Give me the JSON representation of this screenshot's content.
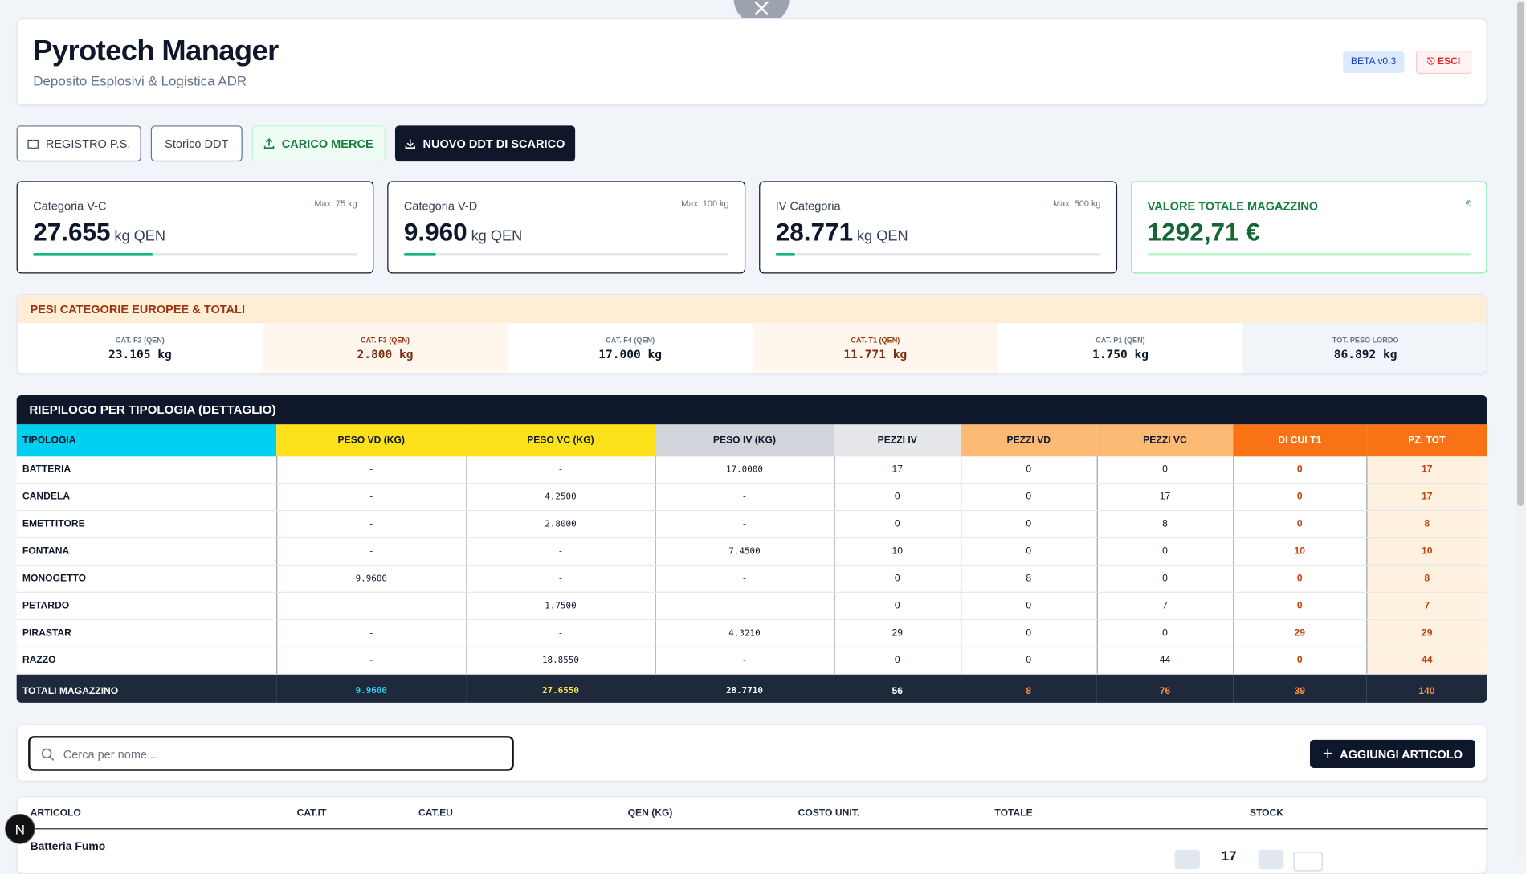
{
  "header": {
    "title": "Pyrotech Manager",
    "subtitle": "Deposito Esplosivi & Logistica ADR",
    "badge": "BETA v0.3",
    "logout": "ESCI"
  },
  "actions": [
    "REGISTRO P.S.",
    "Storico DDT",
    "CARICO MERCE",
    "NUOVO DDT DI SCARICO"
  ],
  "stats": [
    {
      "label": "Categoria V-C",
      "max": "Max: 75 kg",
      "value": "27.655",
      "unit": "kg QEN"
    },
    {
      "label": "Categoria V-D",
      "max": "Max: 100 kg",
      "value": "9.960",
      "unit": "kg QEN"
    },
    {
      "label": "IV Categoria",
      "max": "Max: 500 kg",
      "value": "28.771",
      "unit": "kg QEN"
    },
    {
      "label": "VALORE TOTALE MAGAZZINO",
      "max": "€",
      "value": "1292,71 €"
    }
  ],
  "european": {
    "title": "PESI CATEGORIE EUROPEE & TOTALI",
    "cells": [
      {
        "label": "CAT. F2 (QEN)",
        "value": "23.105 kg"
      },
      {
        "label": "CAT. F3 (QEN)",
        "value": "2.800 kg"
      },
      {
        "label": "CAT. F4 (QEN)",
        "value": "17.000 kg"
      },
      {
        "label": "CAT. T1 (QEN)",
        "value": "11.771 kg"
      },
      {
        "label": "CAT. P1 (QEN)",
        "value": "1.750 kg"
      },
      {
        "label": "TOT. PESO LORDO",
        "value": "86.892 kg"
      }
    ]
  },
  "summary": {
    "title": "RIEPILOGO PER TIPOLOGIA (DETTAGLIO)",
    "columns": [
      "TIPOLOGIA",
      "PESO VD (KG)",
      "PESO VC (KG)",
      "PESO IV (KG)",
      "PEZZI IV",
      "PEZZI VD",
      "PEZZI VC",
      "DI CUI T1",
      "PZ. TOT"
    ],
    "rows": [
      [
        "BATTERIA",
        "-",
        "-",
        "17.0000",
        "17",
        "0",
        "0",
        "0",
        "17"
      ],
      [
        "CANDELA",
        "-",
        "4.2500",
        "-",
        "0",
        "0",
        "17",
        "0",
        "17"
      ],
      [
        "EMETTITORE",
        "-",
        "2.8000",
        "-",
        "0",
        "0",
        "8",
        "0",
        "8"
      ],
      [
        "FONTANA",
        "-",
        "-",
        "7.4500",
        "10",
        "0",
        "0",
        "10",
        "10"
      ],
      [
        "MONOGETTO",
        "9.9600",
        "-",
        "-",
        "0",
        "8",
        "0",
        "0",
        "8"
      ],
      [
        "PETARDO",
        "-",
        "1.7500",
        "-",
        "0",
        "0",
        "7",
        "0",
        "7"
      ],
      [
        "PIRASTAR",
        "-",
        "-",
        "4.3210",
        "29",
        "0",
        "0",
        "29",
        "29"
      ],
      [
        "RAZZO",
        "-",
        "18.8550",
        "-",
        "0",
        "0",
        "44",
        "0",
        "44"
      ]
    ],
    "totals": [
      "TOTALI MAGAZZINO",
      "9.9600",
      "27.6550",
      "28.7710",
      "56",
      "8",
      "76",
      "39",
      "140"
    ]
  },
  "search": {
    "placeholder": "Cerca per nome...",
    "add": "AGGIUNGI ARTICOLO"
  },
  "articles": {
    "columns": [
      "ARTICOLO",
      "CAT.IT",
      "CAT.EU",
      "QEN (KG)",
      "COSTO UNIT.",
      "TOTALE",
      "STOCK"
    ],
    "rows": [
      {
        "name": "Batteria Fumo",
        "stock": "17"
      }
    ]
  },
  "dev_badge": "N"
}
